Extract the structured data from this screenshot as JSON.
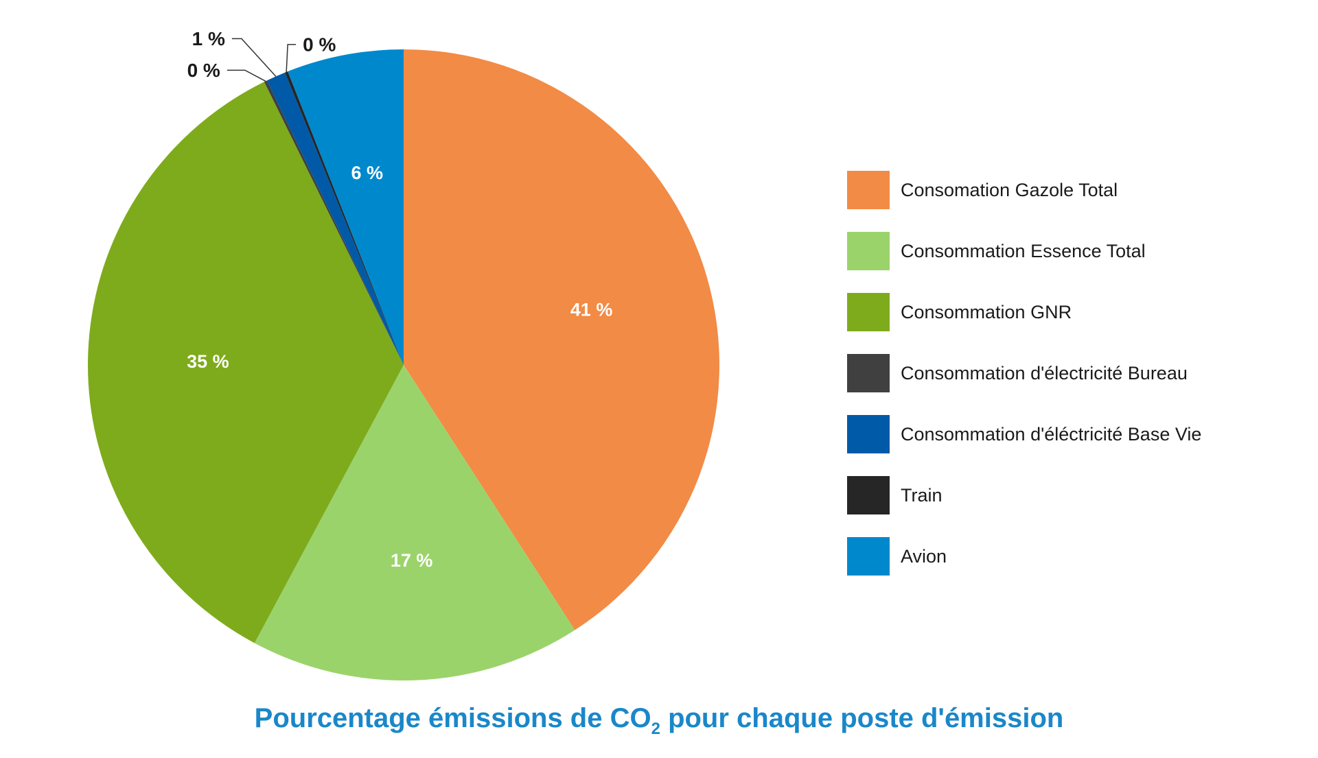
{
  "chart_data": {
    "type": "pie",
    "title_parts": {
      "before": "Pourcentage émissions de CO",
      "subscript": "2",
      "after": " pour chaque poste d'émission"
    },
    "slices": [
      {
        "label": "Consomation Gazole Total",
        "value": 41,
        "display": "41 %",
        "color": "#f28b45"
      },
      {
        "label": "Consommation Essence Total",
        "value": 17,
        "display": "17 %",
        "color": "#9bd36b"
      },
      {
        "label": "Consommation GNR",
        "value": 35,
        "display": "35 %",
        "color": "#7eab1c"
      },
      {
        "label": "Consommation d'électricité Bureau",
        "value": 0,
        "display": "0 %",
        "color": "#404040"
      },
      {
        "label": "Consommation d'éléctricité Base Vie",
        "value": 1,
        "display": "1 %",
        "color": "#005aa8"
      },
      {
        "label": "Train",
        "value": 0,
        "display": "0 %",
        "color": "#262626"
      },
      {
        "label": "Avion",
        "value": 6,
        "display": "6 %",
        "color": "#0088cc"
      }
    ],
    "legend_position": "right"
  }
}
